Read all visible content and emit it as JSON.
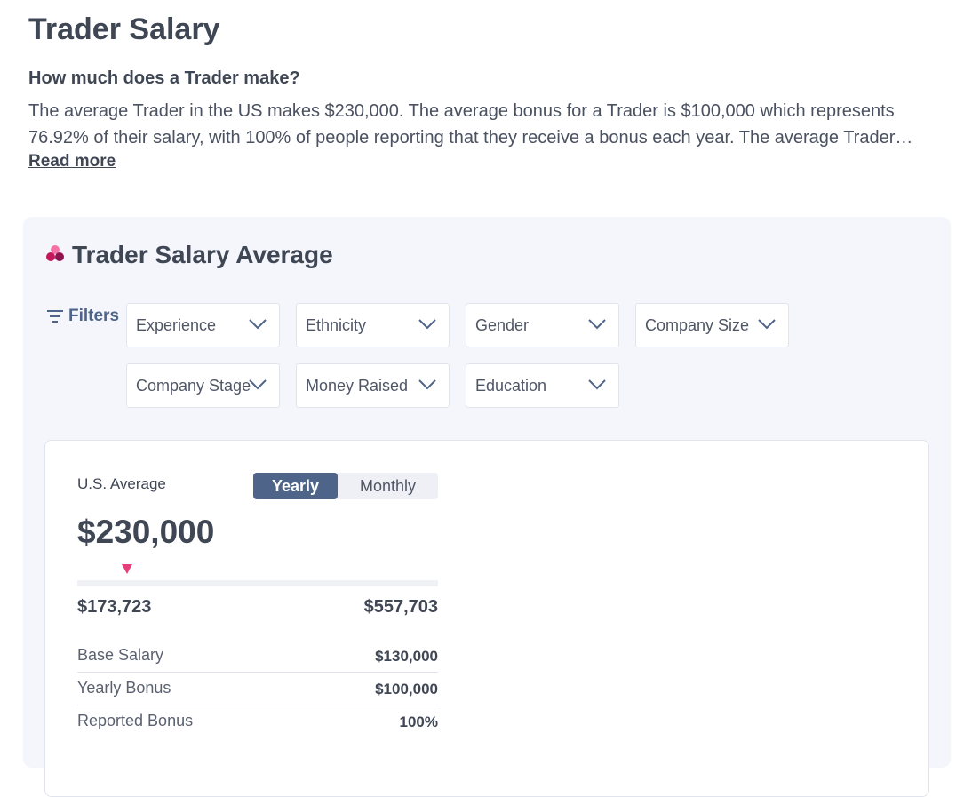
{
  "header": {
    "title": "Trader Salary",
    "subtitle": "How much does a Trader make?",
    "description": "The average Trader in the US makes $230,000. The average bonus for a Trader is $100,000 which represents 76.92% of their salary, with 100% of people reporting that they receive a bonus each year. The average Trader salary has changed over the years.",
    "read_more": "Read more"
  },
  "card": {
    "title": "Trader Salary Average",
    "filters": {
      "label": "Filters",
      "options": [
        "Experience",
        "Ethnicity",
        "Gender",
        "Company Size",
        "Company Stage",
        "Money Raised",
        "Education"
      ]
    },
    "summary": {
      "label": "U.S. Average",
      "toggle": [
        "Yearly",
        "Monthly"
      ],
      "amount": "$230,000",
      "range": [
        "$173,723",
        "$557,703"
      ],
      "rows": [
        [
          "Base Salary",
          "$130,000"
        ],
        [
          "Yearly Bonus",
          "$100,000"
        ],
        [
          "Reported Bonus",
          "100%"
        ]
      ]
    }
  }
}
